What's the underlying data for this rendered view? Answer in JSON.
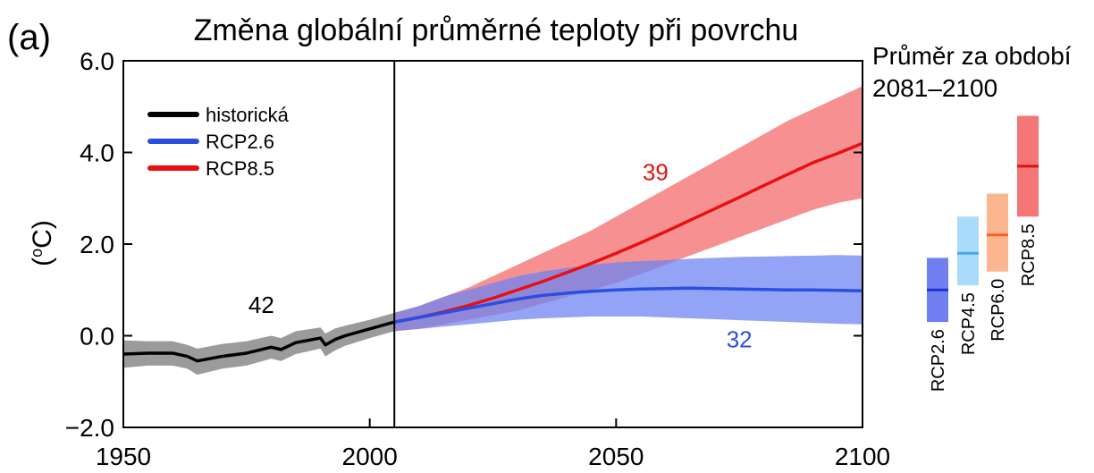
{
  "panel_label": "(a)",
  "chart_data": {
    "type": "line",
    "title": "Změna globální průměrné teploty při povrchu",
    "ylabel": "(oC)",
    "ylabel_base": "(",
    "ylabel_sup": "o",
    "ylabel_unit": "C)",
    "xlabel": "",
    "xlim": [
      1950,
      2100
    ],
    "ylim": [
      -2.0,
      6.0
    ],
    "xticks": [
      1950,
      2000,
      2050,
      2100
    ],
    "yticks": [
      -2.0,
      0.0,
      2.0,
      4.0,
      6.0
    ],
    "ytick_labels": [
      "−2.0",
      "0.0",
      "2.0",
      "4.0",
      "6.0"
    ],
    "divider_year": 2005,
    "grid": false,
    "legend_position": "top-left",
    "legend": [
      {
        "key": "historical",
        "label": "historická",
        "color": "#000000"
      },
      {
        "key": "rcp26",
        "label": "RCP2.6",
        "color": "#2a4fe0"
      },
      {
        "key": "rcp85",
        "label": "RCP8.5",
        "color": "#e81010"
      }
    ],
    "series": [
      {
        "key": "historical",
        "name": "historická",
        "color": "#000000",
        "band_color": "#7a7a7a",
        "x": [
          1950,
          1955,
          1960,
          1963,
          1965,
          1970,
          1975,
          1980,
          1982,
          1985,
          1990,
          1991,
          1993,
          1995,
          2000,
          2005
        ],
        "y": [
          -0.4,
          -0.38,
          -0.38,
          -0.45,
          -0.55,
          -0.45,
          -0.38,
          -0.25,
          -0.3,
          -0.15,
          -0.05,
          -0.2,
          -0.08,
          0.0,
          0.15,
          0.3
        ],
        "lower": [
          -0.7,
          -0.65,
          -0.65,
          -0.72,
          -0.85,
          -0.72,
          -0.65,
          -0.5,
          -0.55,
          -0.4,
          -0.28,
          -0.45,
          -0.32,
          -0.22,
          -0.05,
          0.1
        ],
        "upper": [
          -0.1,
          -0.12,
          -0.12,
          -0.2,
          -0.28,
          -0.18,
          -0.12,
          0.0,
          -0.05,
          0.1,
          0.18,
          0.05,
          0.16,
          0.22,
          0.35,
          0.5
        ]
      },
      {
        "key": "rcp85",
        "name": "RCP8.5",
        "color": "#e81010",
        "band_color": "#f46c6c",
        "x": [
          2005,
          2010,
          2015,
          2020,
          2025,
          2030,
          2035,
          2040,
          2045,
          2050,
          2055,
          2060,
          2065,
          2070,
          2075,
          2080,
          2085,
          2090,
          2095,
          2100
        ],
        "y": [
          0.3,
          0.4,
          0.52,
          0.66,
          0.82,
          1.0,
          1.18,
          1.38,
          1.58,
          1.8,
          2.03,
          2.27,
          2.52,
          2.77,
          3.02,
          3.28,
          3.53,
          3.78,
          3.98,
          4.2
        ],
        "lower": [
          0.1,
          0.15,
          0.25,
          0.35,
          0.45,
          0.55,
          0.7,
          0.85,
          1.0,
          1.15,
          1.35,
          1.55,
          1.75,
          1.95,
          2.15,
          2.35,
          2.55,
          2.75,
          2.9,
          3.0
        ],
        "upper": [
          0.5,
          0.65,
          0.85,
          1.05,
          1.3,
          1.55,
          1.8,
          2.05,
          2.3,
          2.6,
          2.9,
          3.2,
          3.5,
          3.8,
          4.1,
          4.4,
          4.7,
          4.95,
          5.2,
          5.45
        ]
      },
      {
        "key": "rcp26",
        "name": "RCP2.6",
        "color": "#2a4fe0",
        "band_color": "#6f84f2",
        "x": [
          2005,
          2010,
          2015,
          2020,
          2025,
          2030,
          2035,
          2040,
          2045,
          2050,
          2055,
          2060,
          2065,
          2070,
          2075,
          2080,
          2085,
          2090,
          2095,
          2100
        ],
        "y": [
          0.3,
          0.4,
          0.5,
          0.6,
          0.7,
          0.8,
          0.88,
          0.93,
          0.97,
          1.0,
          1.02,
          1.03,
          1.04,
          1.03,
          1.02,
          1.01,
          1.0,
          1.0,
          0.99,
          0.98
        ],
        "lower": [
          0.1,
          0.15,
          0.2,
          0.25,
          0.3,
          0.35,
          0.38,
          0.4,
          0.42,
          0.42,
          0.42,
          0.4,
          0.38,
          0.36,
          0.34,
          0.32,
          0.3,
          0.28,
          0.26,
          0.25
        ],
        "upper": [
          0.5,
          0.65,
          0.85,
          1.0,
          1.15,
          1.3,
          1.4,
          1.48,
          1.55,
          1.6,
          1.63,
          1.65,
          1.68,
          1.7,
          1.72,
          1.73,
          1.74,
          1.75,
          1.76,
          1.75
        ]
      }
    ],
    "annotations": [
      {
        "text": "42",
        "x": 1978,
        "y": 0.5,
        "color": "#000000"
      },
      {
        "text": "39",
        "x": 2058,
        "y": 3.4,
        "color": "#e81010"
      },
      {
        "text": "32",
        "x": 2075,
        "y": -0.25,
        "color": "#2a4fe0"
      }
    ],
    "side_panel": {
      "title_line1": "Průměr za období",
      "title_line2": "2081–2100",
      "bars": [
        {
          "label": "RCP2.6",
          "low": 0.3,
          "mean": 1.0,
          "high": 1.7,
          "color": "#4050e8",
          "fill": "#6f7ff0",
          "mean_color": "#1f32d8"
        },
        {
          "label": "RCP4.5",
          "low": 1.1,
          "mean": 1.8,
          "high": 2.6,
          "color": "#80c4f4",
          "fill": "#a9dcfa",
          "mean_color": "#4aa6ee"
        },
        {
          "label": "RCP6.0",
          "low": 1.4,
          "mean": 2.2,
          "high": 3.1,
          "color": "#f89060",
          "fill": "#fbb68f",
          "mean_color": "#f46420"
        },
        {
          "label": "RCP8.5",
          "low": 2.6,
          "mean": 3.7,
          "high": 4.8,
          "color": "#f05050",
          "fill": "#f47676",
          "mean_color": "#e01010"
        }
      ]
    }
  }
}
